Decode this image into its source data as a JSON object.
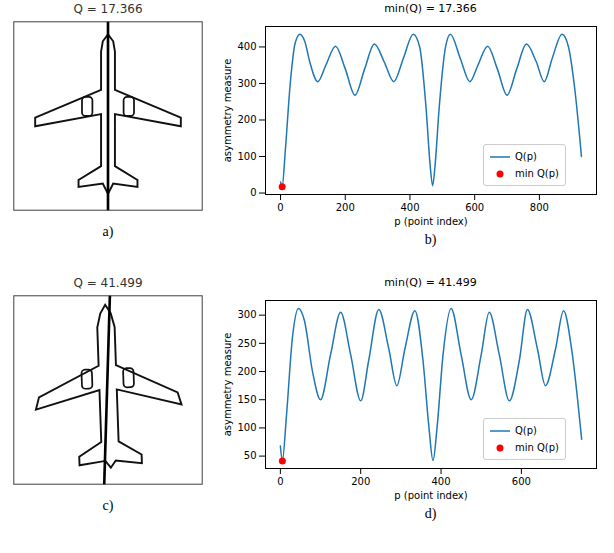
{
  "chart_data": [
    {
      "type": "line",
      "panel": "b)",
      "title": "min(Q) = 17.366",
      "x_label": "p (point index)",
      "y_label": "asymmetry measure",
      "xlim": [
        -46.5,
        976.5
      ],
      "xticks": [
        0,
        200,
        400,
        600,
        800
      ],
      "ylim": [
        -4,
        456
      ],
      "yticks": [
        0,
        100,
        200,
        300,
        400
      ],
      "grid": false,
      "legend": "lower right",
      "series": [
        {
          "name": "Q(p)",
          "color": "#1f77b4",
          "type": "line",
          "line_style": "solid",
          "x": [
            0,
            5,
            15,
            30,
            45,
            60,
            75,
            90,
            115,
            140,
            170,
            200,
            230,
            260,
            290,
            320,
            350,
            380,
            410,
            430,
            450,
            462,
            470,
            478,
            490,
            510,
            525,
            555,
            585,
            610,
            640,
            670,
            700,
            730,
            760,
            790,
            815,
            840,
            870,
            890,
            910,
            930
          ],
          "values": [
            30,
            17.366,
            120,
            300,
            410,
            435,
            415,
            360,
            305,
            350,
            402,
            340,
            268,
            340,
            408,
            360,
            305,
            370,
            435,
            400,
            230,
            80,
            20,
            80,
            230,
            400,
            435,
            370,
            305,
            350,
            402,
            340,
            268,
            340,
            408,
            360,
            305,
            370,
            435,
            400,
            280,
            100
          ]
        },
        {
          "name": "min Q(p)",
          "color": "red",
          "type": "scatter",
          "marker": "circle",
          "x": [
            5
          ],
          "values": [
            17.366
          ]
        }
      ]
    },
    {
      "type": "line",
      "panel": "d)",
      "title": "min(Q) = 41.499",
      "x_label": "p (point index)",
      "y_label": "asymmetry measure",
      "xlim": [
        -37,
        787
      ],
      "xticks": [
        0,
        200,
        400,
        600
      ],
      "ylim": [
        28,
        326
      ],
      "yticks": [
        50,
        100,
        150,
        200,
        250,
        300
      ],
      "grid": false,
      "legend": "lower right",
      "series": [
        {
          "name": "Q(p)",
          "color": "#1f77b4",
          "type": "line",
          "line_style": "solid",
          "x": [
            0,
            5,
            15,
            30,
            45,
            60,
            80,
            100,
            125,
            150,
            175,
            200,
            220,
            245,
            270,
            290,
            310,
            335,
            355,
            370,
            380,
            390,
            405,
            425,
            450,
            475,
            500,
            520,
            545,
            570,
            595,
            615,
            640,
            660,
            685,
            705,
            725,
            740,
            750
          ],
          "values": [
            68,
            41.499,
            120,
            260,
            312,
            290,
            200,
            150,
            230,
            305,
            230,
            148,
            220,
            310,
            240,
            175,
            240,
            308,
            220,
            100,
            42,
            100,
            230,
            312,
            230,
            150,
            230,
            305,
            230,
            148,
            220,
            310,
            240,
            175,
            240,
            308,
            240,
            150,
            80
          ]
        },
        {
          "name": "min Q(p)",
          "color": "red",
          "type": "scatter",
          "marker": "circle",
          "x": [
            5
          ],
          "values": [
            41.499
          ]
        }
      ]
    }
  ],
  "images": [
    {
      "panel": "a)",
      "title": "Q = 17.366"
    },
    {
      "panel": "c)",
      "title": "Q = 41.499"
    }
  ]
}
